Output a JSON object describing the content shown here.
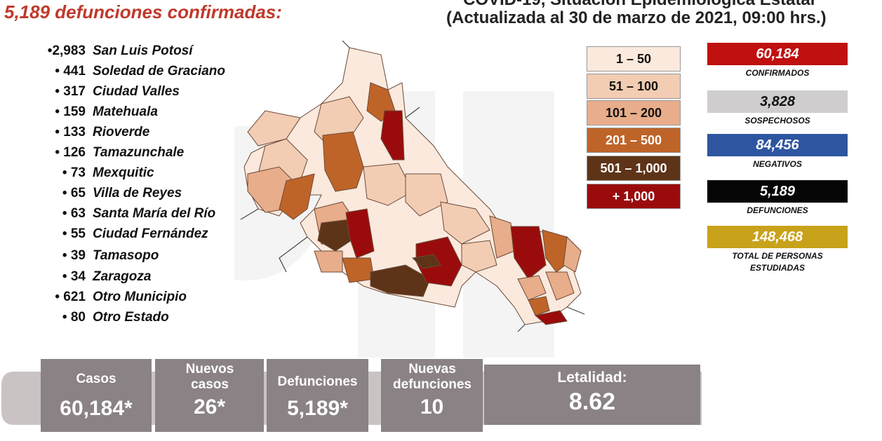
{
  "title": "5,189 defunciones confirmadas:",
  "header": {
    "line1": "COVID-19, Situación Epidemiológica Estatal",
    "line2": "(Actualizada al 30 de marzo de 2021, 09:00 hrs.)"
  },
  "municipalities": [
    {
      "num": "•2,983",
      "name": "San Luis Potosí"
    },
    {
      "num": "• 441",
      "name": "Soledad de Graciano"
    },
    {
      "num": "• 317",
      "name": "Ciudad Valles"
    },
    {
      "num": "• 159",
      "name": "Matehuala"
    },
    {
      "num": "• 133",
      "name": "Rioverde"
    },
    {
      "num": "• 126",
      "name": "Tamazunchale"
    },
    {
      "num": "• 73",
      "name": "Mexquitic"
    },
    {
      "num": "• 65",
      "name": "Villa de Reyes"
    },
    {
      "num": "• 63",
      "name": "Santa María del Río"
    },
    {
      "num": "• 55",
      "name": "Ciudad Fernández"
    },
    {
      "num": "• 39",
      "name": "Tamasopo"
    },
    {
      "num": "• 34",
      "name": "Zaragoza"
    },
    {
      "num": "• 621",
      "name": "Otro Municipio"
    },
    {
      "num": "• 80",
      "name": "Otro Estado"
    }
  ],
  "legend": [
    {
      "label": "1 – 50",
      "color": "#fbe9dd",
      "text_color": "#111111"
    },
    {
      "label": "51 – 100",
      "color": "#f2cdb3",
      "text_color": "#111111"
    },
    {
      "label": "101 – 200",
      "color": "#e8ad8a",
      "text_color": "#111111"
    },
    {
      "label": "201 – 500",
      "color": "#bf6428",
      "text_color": "#ffffff"
    },
    {
      "label": "501 – 1,000",
      "color": "#5e3418",
      "text_color": "#ffffff"
    },
    {
      "label": "+ 1,000",
      "color": "#9a0c0c",
      "text_color": "#ffffff"
    }
  ],
  "stats": [
    {
      "value": "60,184",
      "label": "CONFIRMADOS",
      "color": "#c0100f"
    },
    {
      "value": "3,828",
      "label": "SOSPECHOSOS",
      "color": "#cfcdcd",
      "text_color": "#111111"
    },
    {
      "value": "84,456",
      "label": "NEGATIVOS",
      "color": "#2e55a0"
    },
    {
      "value": "5,189",
      "label": "DEFUNCIONES",
      "color": "#050505"
    },
    {
      "value": "148,468",
      "label": "TOTAL DE PERSONAS ESTUDIADAS",
      "color": "#c9a21b"
    }
  ],
  "tiles": [
    {
      "title": "Casos",
      "value": "60,184*"
    },
    {
      "title": "Nuevos casos",
      "value": "26*"
    },
    {
      "title": "Defunciones",
      "value": "5,189*"
    },
    {
      "title": "Nuevas defunciones",
      "value": "10"
    },
    {
      "title": "Letalidad:",
      "value": "8.62"
    }
  ]
}
